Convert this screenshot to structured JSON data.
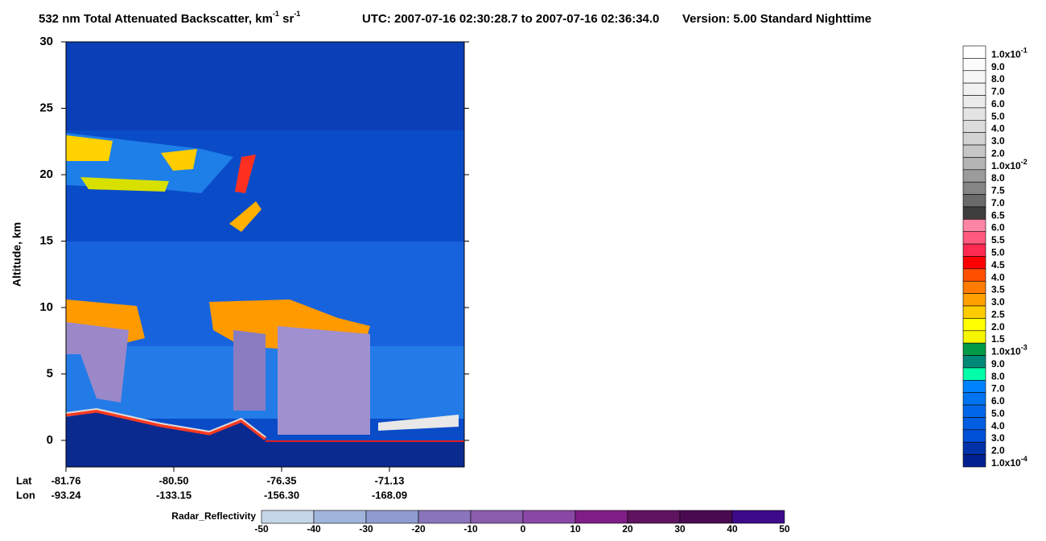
{
  "chart_data": {
    "type": "curtain",
    "title": {
      "main": "532 nm Total Attenuated Backscatter, km",
      "sup1": "-1",
      "mid": " sr",
      "sup2": "-1",
      "time": "UTC:  2007-07-16 02:30:28.7  to  2007-07-16 02:36:34.0",
      "version": "Version: 5.00  Standard  Nighttime"
    },
    "y_label": "Altitude, km",
    "ylim": [
      -2,
      30
    ],
    "yticks": [
      0,
      5,
      10,
      15,
      20,
      25,
      30
    ],
    "x_row_labels": [
      "Lat",
      "Lon"
    ],
    "x_positions": [
      {
        "lat": "-81.76",
        "lon": "-93.24"
      },
      {
        "lat": "-80.50",
        "lon": "-133.15"
      },
      {
        "lat": "-76.35",
        "lon": "-156.30"
      },
      {
        "lat": "-71.13",
        "lon": "-168.09"
      }
    ],
    "colorbar": [
      {
        "label": "1.0x10",
        "sup": "-1",
        "color": "#ffffff"
      },
      {
        "label": "9.0",
        "color": "#fbfbfb"
      },
      {
        "label": "8.0",
        "color": "#f6f6f6"
      },
      {
        "label": "7.0",
        "color": "#f1f1f1"
      },
      {
        "label": "6.0",
        "color": "#ebebeb"
      },
      {
        "label": "5.0",
        "color": "#e4e4e4"
      },
      {
        "label": "4.0",
        "color": "#dcdcdc"
      },
      {
        "label": "3.0",
        "color": "#d2d2d2"
      },
      {
        "label": "2.0",
        "color": "#c6c6c6"
      },
      {
        "label": "1.0x10",
        "sup": "-2",
        "color": "#b4b4b4"
      },
      {
        "label": "8.0",
        "color": "#9c9c9c"
      },
      {
        "label": "7.5",
        "color": "#858585"
      },
      {
        "label": "7.0",
        "color": "#6a6a6a"
      },
      {
        "label": "6.5",
        "color": "#3e3e3e"
      },
      {
        "label": "6.0",
        "color": "#ff85a5"
      },
      {
        "label": "5.5",
        "color": "#ff5a7f"
      },
      {
        "label": "5.0",
        "color": "#ff2a52"
      },
      {
        "label": "4.5",
        "color": "#ff0000"
      },
      {
        "label": "4.0",
        "color": "#ff5000"
      },
      {
        "label": "3.5",
        "color": "#ff7c00"
      },
      {
        "label": "3.0",
        "color": "#ffa000"
      },
      {
        "label": "2.5",
        "color": "#ffcc00"
      },
      {
        "label": "2.0",
        "color": "#ffff00"
      },
      {
        "label": "1.5",
        "color": "#f5f500"
      },
      {
        "label": "1.0x10",
        "sup": "-3",
        "color": "#009a48"
      },
      {
        "label": "9.0",
        "color": "#008878"
      },
      {
        "label": "8.0",
        "color": "#00ffa8"
      },
      {
        "label": "7.0",
        "color": "#0082ff"
      },
      {
        "label": "6.0",
        "color": "#0074f0"
      },
      {
        "label": "5.0",
        "color": "#0068e8"
      },
      {
        "label": "4.0",
        "color": "#005ee0"
      },
      {
        "label": "3.0",
        "color": "#0050d8"
      },
      {
        "label": "2.0",
        "color": "#0032a8"
      },
      {
        "label": "1.0x10",
        "sup": "-4",
        "color": "#00208f"
      }
    ],
    "radar_label": "Radar_Reflectivity",
    "radar_ticks": [
      -50,
      -40,
      -30,
      -20,
      -10,
      0,
      10,
      20,
      30,
      40,
      50
    ],
    "radar_colors": [
      "#c5d5e8",
      "#a0b5da",
      "#8f9cd0",
      "#8a74bc",
      "#8a5cae",
      "#8a48a6",
      "#7e1e86",
      "#5e145e",
      "#4a0a50",
      "#3e0a8c"
    ]
  }
}
